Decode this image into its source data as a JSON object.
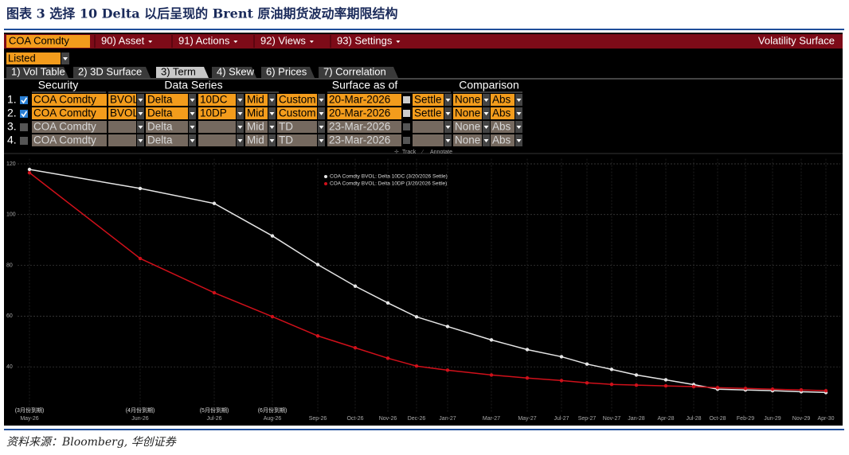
{
  "header": {
    "title": "图表 3 选择 10 Delta 以后呈现的 Brent 原油期货波动率期限结构"
  },
  "toolbar": {
    "security": "COA Comdty",
    "menus": [
      "90) Asset",
      "91) Actions",
      "92) Views",
      "93) Settings"
    ],
    "function": "Volatility Surface"
  },
  "filter": "Listed",
  "tabs": [
    "1) Vol Table",
    "2) 3D Surface",
    "3) Term",
    "4) Skew",
    "6) Prices",
    "7) Correlation"
  ],
  "active_tab": 2,
  "table": {
    "columns": [
      "Security",
      "Data Series",
      "Surface as of",
      "Comparison"
    ],
    "rows": [
      {
        "num": "1.",
        "checked": true,
        "enabled": true,
        "cells": [
          "COA Comdty",
          "BVOL",
          "Delta",
          "10DC",
          "Mid",
          "Custom",
          "20-Mar-2026",
          "Settle",
          "None",
          "Abs"
        ]
      },
      {
        "num": "2.",
        "checked": true,
        "enabled": true,
        "cells": [
          "COA Comdty",
          "BVOL",
          "Delta",
          "10DP",
          "Mid",
          "Custom",
          "20-Mar-2026",
          "Settle",
          "None",
          "Abs"
        ]
      },
      {
        "num": "3.",
        "checked": false,
        "enabled": false,
        "cells": [
          "COA Comdty",
          null,
          "Delta",
          null,
          "Mid",
          "TD",
          "23-Mar-2026",
          null,
          "None",
          "Abs"
        ]
      },
      {
        "num": "4.",
        "checked": false,
        "enabled": false,
        "cells": [
          "COA Comdty",
          null,
          "Delta",
          null,
          "Mid",
          "TD",
          "23-Mar-2026",
          null,
          "None",
          "Abs"
        ]
      }
    ]
  },
  "chart_tools": [
    "Track",
    "Annotate"
  ],
  "chart_data": {
    "type": "line",
    "categories": [
      "May-26",
      "Jun-26",
      "Jul-26",
      "Aug-26",
      "Sep-26",
      "Oct-26",
      "Nov-26",
      "Dec-26",
      "Jan-27",
      "Mar-27",
      "May-27",
      "Jul-27",
      "Sep-27",
      "Nov-27",
      "Jan-28",
      "Apr-28",
      "Jul-28",
      "Oct-28",
      "Feb-29",
      "Jun-29",
      "Nov-29",
      "Apr-30"
    ],
    "series": [
      {
        "name": "COA Comdty BVOL: Delta 10DC (3/20/2026 Settle)",
        "color": "#e6e6e6",
        "values": [
          117.8,
          110.3,
          104.4,
          91.6,
          80.3,
          71.8,
          65.2,
          59.7,
          55.9,
          50.6,
          46.8,
          44,
          41.1,
          39,
          36.8,
          34.9,
          33,
          31.2,
          30.9,
          30.6,
          30.2,
          29.9
        ]
      },
      {
        "name": "COA Comdty BVOL: Delta 10DP (3/20/2026 Settle)",
        "color": "#d0101a",
        "values": [
          116.5,
          82.7,
          69.2,
          59.8,
          52.2,
          47.5,
          43.4,
          40.3,
          38.7,
          36.8,
          35.6,
          34.6,
          33.7,
          33.1,
          32.8,
          32.5,
          32.2,
          31.8,
          31.5,
          31.2,
          30.9,
          30.6
        ]
      }
    ],
    "annotations": [
      "(3月份到期)",
      "(4月份到期)",
      "(5月份到期)",
      "(6月份到期)"
    ],
    "ylim": [
      22,
      122
    ],
    "yticks": [
      40,
      60,
      80,
      100,
      120
    ],
    "grid": true
  },
  "footer": {
    "source": "资料来源：Bloomberg, 华创证券"
  }
}
